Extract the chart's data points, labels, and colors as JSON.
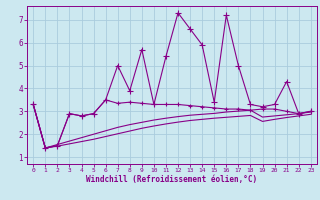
{
  "xlabel": "Windchill (Refroidissement éolien,°C)",
  "background_color": "#cce8f0",
  "grid_color": "#aaccdd",
  "line_color": "#880088",
  "xlim": [
    -0.5,
    23.5
  ],
  "ylim": [
    0.7,
    7.6
  ],
  "xticks": [
    0,
    1,
    2,
    3,
    4,
    5,
    6,
    7,
    8,
    9,
    10,
    11,
    12,
    13,
    14,
    15,
    16,
    17,
    18,
    19,
    20,
    21,
    22,
    23
  ],
  "yticks": [
    1,
    2,
    3,
    4,
    5,
    6,
    7
  ],
  "series1_x": [
    0,
    1,
    2,
    3,
    4,
    5,
    6,
    7,
    8,
    9,
    10,
    11,
    12,
    13,
    14,
    15,
    16,
    17,
    18,
    19,
    20,
    21,
    22,
    23
  ],
  "series1_y": [
    3.3,
    1.4,
    1.5,
    2.9,
    2.8,
    2.9,
    3.5,
    5.0,
    3.9,
    5.7,
    3.3,
    5.4,
    7.3,
    6.6,
    5.9,
    3.4,
    7.2,
    5.0,
    3.3,
    3.2,
    3.3,
    4.3,
    2.9,
    3.0
  ],
  "series2_x": [
    0,
    1,
    2,
    3,
    4,
    5,
    6,
    7,
    8,
    9,
    10,
    11,
    12,
    13,
    14,
    15,
    16,
    17,
    18,
    19,
    20,
    21,
    22,
    23
  ],
  "series2_y": [
    3.3,
    1.4,
    1.5,
    2.9,
    2.8,
    2.9,
    3.5,
    3.35,
    3.4,
    3.35,
    3.3,
    3.3,
    3.3,
    3.25,
    3.2,
    3.15,
    3.1,
    3.1,
    3.05,
    3.1,
    3.1,
    3.0,
    2.9,
    3.0
  ],
  "series3_x": [
    0,
    1,
    2,
    3,
    4,
    5,
    6,
    7,
    8,
    9,
    10,
    11,
    12,
    13,
    14,
    15,
    16,
    17,
    18,
    19,
    20,
    21,
    22,
    23
  ],
  "series3_y": [
    3.3,
    1.4,
    1.55,
    1.7,
    1.85,
    2.0,
    2.15,
    2.3,
    2.42,
    2.52,
    2.62,
    2.7,
    2.77,
    2.83,
    2.87,
    2.91,
    2.97,
    3.01,
    3.05,
    2.75,
    2.8,
    2.85,
    2.9,
    2.97
  ],
  "series4_x": [
    0,
    1,
    2,
    3,
    4,
    5,
    6,
    7,
    8,
    9,
    10,
    11,
    12,
    13,
    14,
    15,
    16,
    17,
    18,
    19,
    20,
    21,
    22,
    23
  ],
  "series4_y": [
    3.3,
    1.4,
    1.48,
    1.58,
    1.68,
    1.78,
    1.9,
    2.02,
    2.14,
    2.26,
    2.36,
    2.45,
    2.53,
    2.6,
    2.65,
    2.7,
    2.74,
    2.78,
    2.82,
    2.56,
    2.65,
    2.73,
    2.8,
    2.87
  ]
}
